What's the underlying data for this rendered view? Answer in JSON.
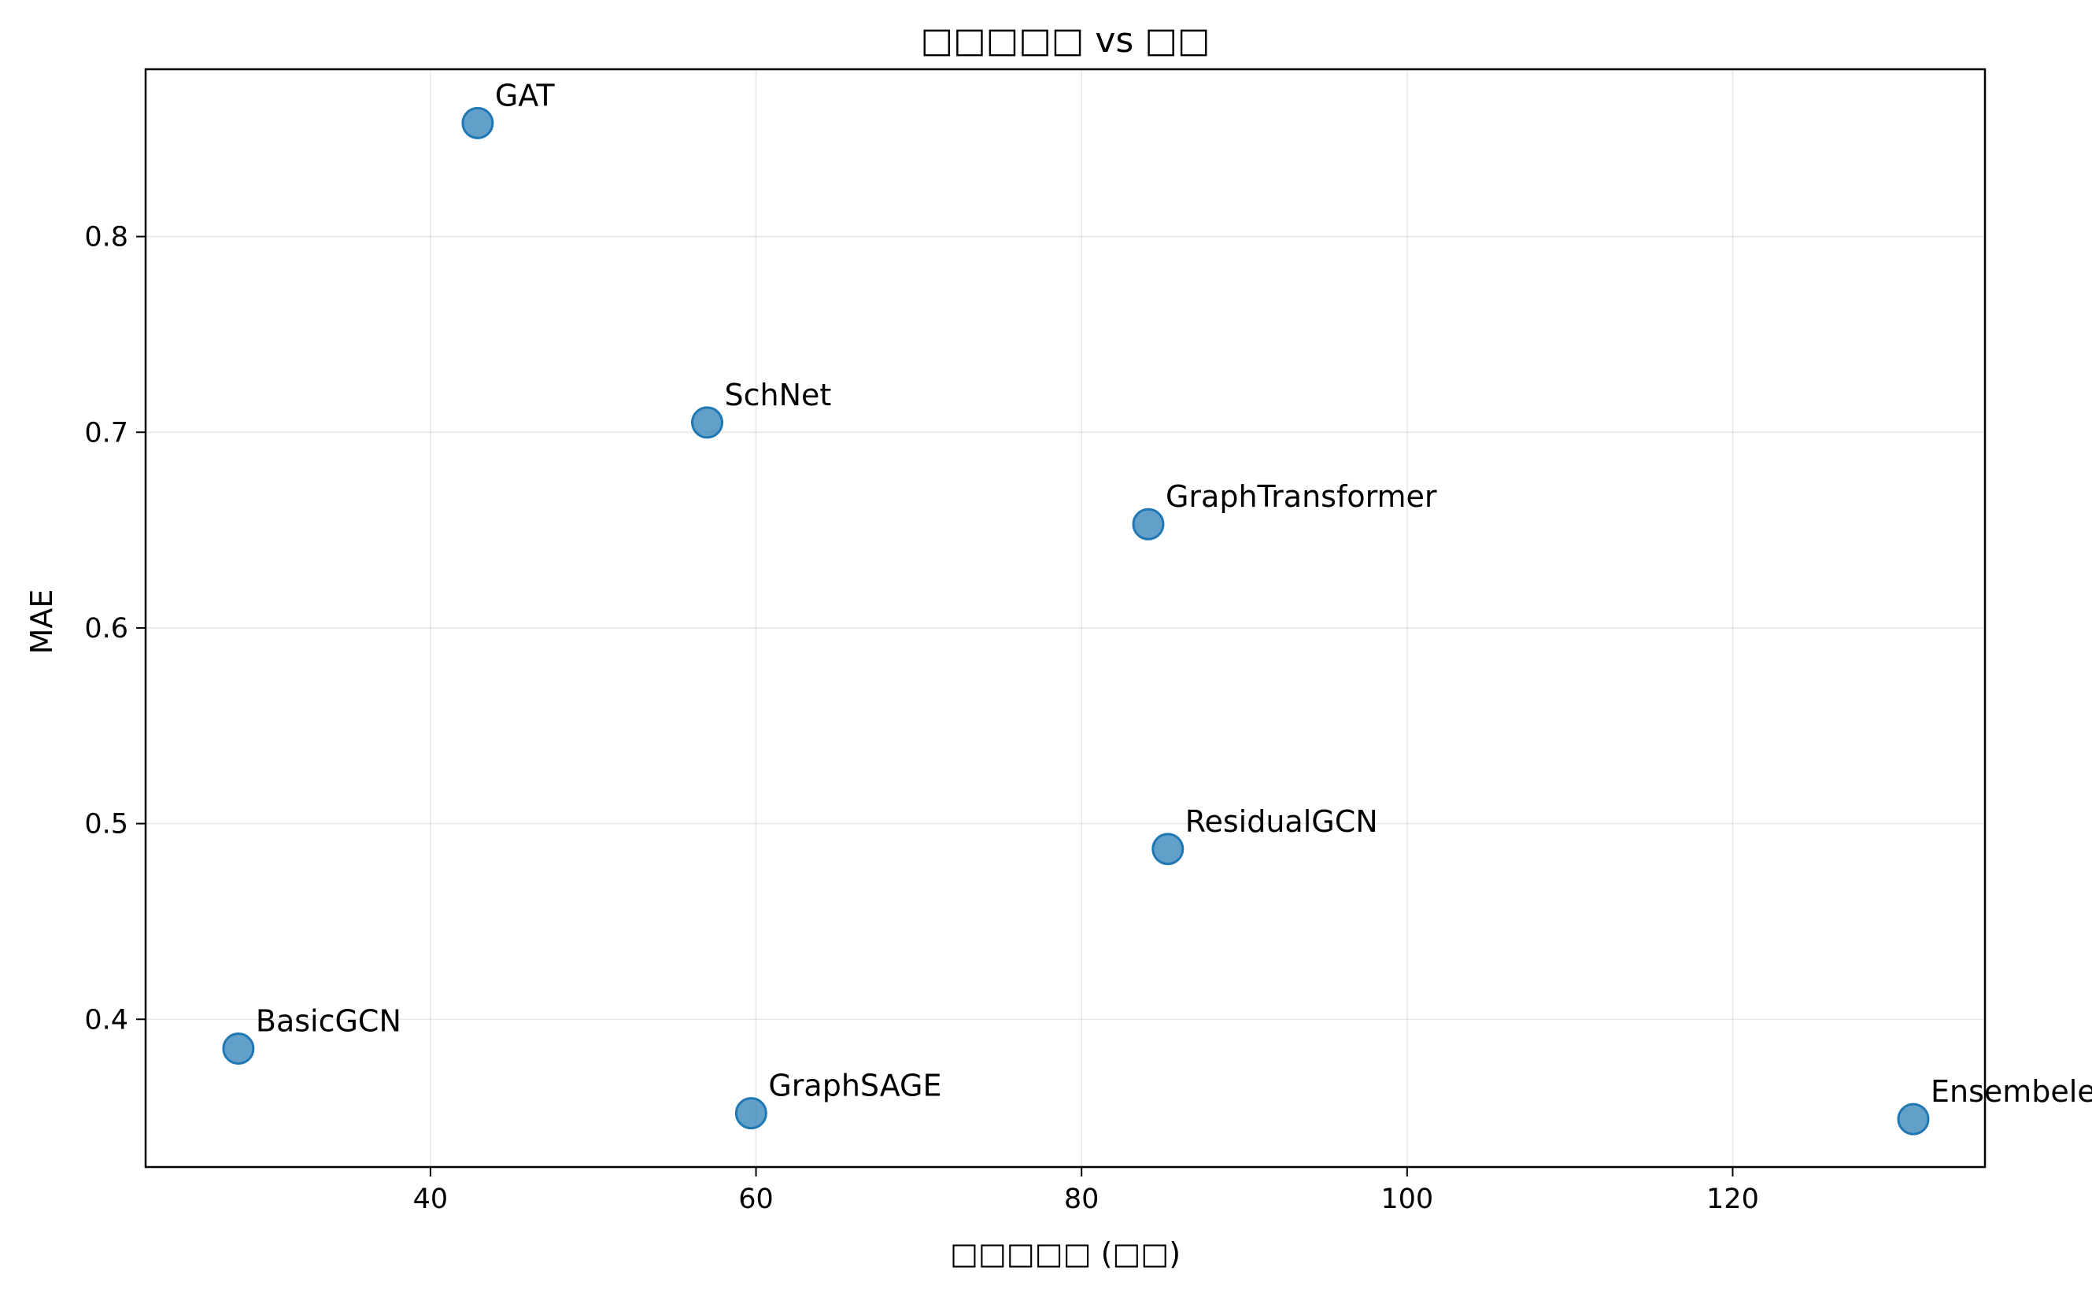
{
  "chart_data": {
    "type": "scatter",
    "title": "□□□□□ vs □□",
    "xlabel": "□□□□□ (□□)",
    "ylabel": "MAE",
    "xlim": [
      22.5,
      135.5
    ],
    "ylim": [
      0.3245,
      0.8855
    ],
    "xticks": [
      40,
      60,
      80,
      100,
      120
    ],
    "yticks": [
      0.4,
      0.5,
      0.6,
      0.7,
      0.8
    ],
    "xtick_labels": [
      "40",
      "60",
      "80",
      "100",
      "120"
    ],
    "ytick_labels": [
      "0.4",
      "0.5",
      "0.6",
      "0.7",
      "0.8"
    ],
    "grid": true,
    "marker_color": "#1f77b4",
    "points": [
      {
        "label": "GAT",
        "x": 42.9,
        "y": 0.858
      },
      {
        "label": "SchNet",
        "x": 57.0,
        "y": 0.705
      },
      {
        "label": "GraphTransformer",
        "x": 84.1,
        "y": 0.653
      },
      {
        "label": "ResidualGCN",
        "x": 85.3,
        "y": 0.487
      },
      {
        "label": "BasicGCN",
        "x": 28.2,
        "y": 0.385
      },
      {
        "label": "GraphSAGE",
        "x": 59.7,
        "y": 0.352
      },
      {
        "label": "Ensembele",
        "x": 131.1,
        "y": 0.349
      }
    ]
  }
}
